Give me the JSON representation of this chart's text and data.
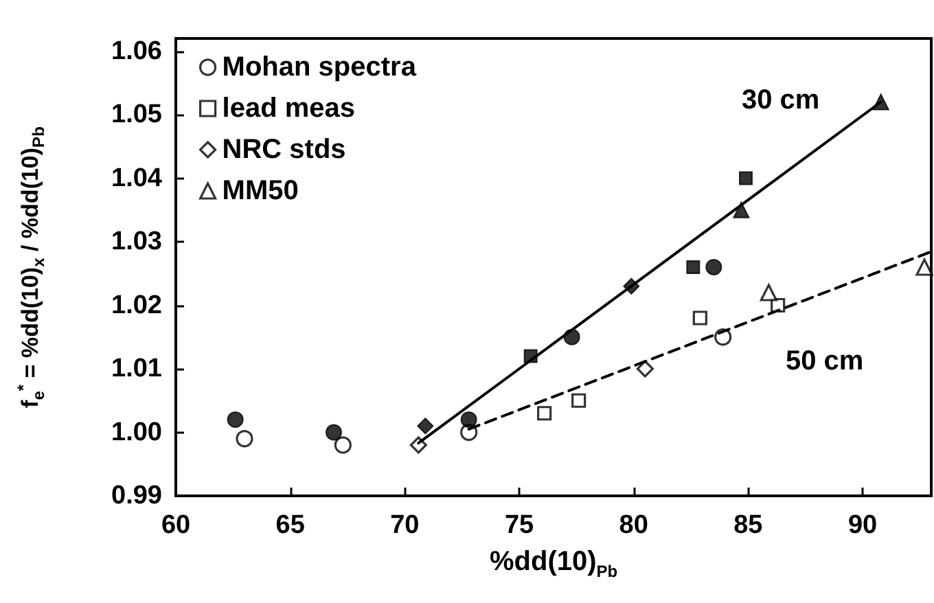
{
  "chart_data": {
    "type": "scatter",
    "xlabel": "%dd(10)$_{Pb}$",
    "ylabel": "f$_{e}$$^{*}$ = %dd(10)$_{x}$ / %dd(10)$_{Pb}$",
    "xlim": [
      60,
      93
    ],
    "xticks": [
      60,
      65,
      70,
      75,
      80,
      85,
      90
    ],
    "ylim": [
      0.99,
      1.062
    ],
    "yticks": [
      0.99,
      {
        "value": 1,
        "label": "1.00"
      },
      1.01,
      1.02,
      1.03,
      1.04,
      1.05,
      1.06
    ],
    "grid": false,
    "legend": "top left",
    "annotations": [
      "30 cm",
      "50 cm"
    ],
    "series": [
      {
        "name": "Mohan spectra",
        "marker": "circle",
        "color": "#000000",
        "x": [
          63.0,
          67.3,
          72.8,
          83.9
        ],
        "values": [
          0.999,
          0.998,
          1.0,
          1.015
        ]
      },
      {
        "name": "lead meas",
        "marker": "square",
        "color": "#000000",
        "x": [
          76.1,
          77.6,
          82.9,
          86.3
        ],
        "values": [
          1.003,
          1.005,
          1.018,
          1.02
        ]
      },
      {
        "name": "NRC stds",
        "marker": "diamond",
        "color": "#000000",
        "x": [
          70.6,
          80.5
        ],
        "values": [
          0.998,
          1.01
        ]
      },
      {
        "name": "MM50",
        "marker": "triangle",
        "color": "#000000",
        "x": [
          85.9,
          92.7
        ],
        "values": [
          1.022,
          1.026
        ]
      },
      {
        "marker": "circle",
        "color": "#000000",
        "x": [
          62.6,
          66.9,
          72.8,
          77.3,
          83.5
        ],
        "values": [
          1.002,
          1.0,
          1.002,
          1.015,
          1.026
        ]
      },
      {
        "marker": "square",
        "color": "#000000",
        "x": [
          75.5,
          82.6,
          84.9
        ],
        "values": [
          1.012,
          1.026,
          1.04
        ]
      },
      {
        "marker": "diamond",
        "color": "#000000",
        "x": [
          70.9,
          79.9
        ],
        "values": [
          1.001,
          1.023
        ]
      },
      {
        "marker": "triangle",
        "color": "#000000",
        "x": [
          84.7,
          90.8
        ],
        "values": [
          1.035,
          1.052
        ]
      },
      {
        "type": "line",
        "marker": "none",
        "line_style": "solid",
        "color": "#000000",
        "x": [
          70.6,
          90.8
        ],
        "values": [
          0.9983,
          1.052
        ]
      },
      {
        "type": "line",
        "marker": "none",
        "line_style": "dashed",
        "color": "#000000",
        "x": [
          72.8,
          92.9
        ],
        "values": [
          1.0005,
          1.0283
        ]
      }
    ]
  }
}
